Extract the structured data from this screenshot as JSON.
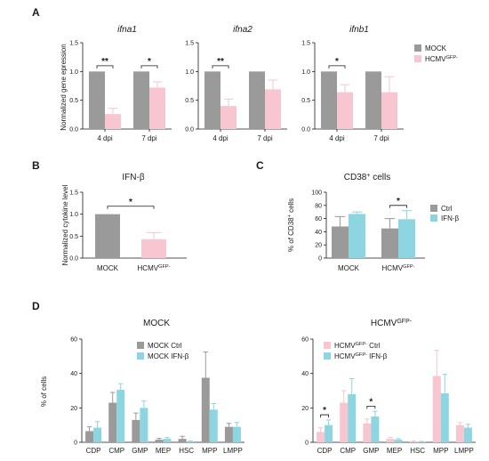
{
  "colors": {
    "mock": "#9a9a9a",
    "hcmv": "#f7c6d0",
    "ctrl": "#9a9a9a",
    "ifnb": "#8dd5e0",
    "axis": "#1a1a1a"
  },
  "panel_letters": [
    "A",
    "B",
    "C",
    "D"
  ],
  "chart_data": [
    {
      "panel": "A",
      "type": "bar",
      "title": "ifna1",
      "ylabel": "Normalized gene epression",
      "ylim": [
        0,
        1.5
      ],
      "yticks": [
        "0.0",
        "0.5",
        "1.0",
        "1.5"
      ],
      "categories": [
        "4 dpi",
        "7 dpi"
      ],
      "series": [
        {
          "name": "MOCK",
          "values": [
            1.0,
            1.0
          ],
          "errors": [
            0,
            0
          ]
        },
        {
          "name": "HCMV",
          "values": [
            0.26,
            0.72
          ],
          "errors": [
            0.1,
            0.1
          ]
        }
      ],
      "significance": [
        {
          "category": "4 dpi",
          "label": "**"
        },
        {
          "category": "7 dpi",
          "label": "*"
        }
      ]
    },
    {
      "panel": "A",
      "type": "bar",
      "title": "ifna2",
      "ylim": [
        0,
        1.5
      ],
      "yticks": [
        "0.0",
        "0.5",
        "1.0",
        "1.5"
      ],
      "categories": [
        "4 dpi",
        "7 dpi"
      ],
      "series": [
        {
          "name": "MOCK",
          "values": [
            1.0,
            1.0
          ],
          "errors": [
            0,
            0
          ]
        },
        {
          "name": "HCMV",
          "values": [
            0.4,
            0.69
          ],
          "errors": [
            0.12,
            0.16
          ]
        }
      ],
      "significance": [
        {
          "category": "4 dpi",
          "label": "**"
        }
      ]
    },
    {
      "panel": "A",
      "type": "bar",
      "title": "ifnb1",
      "ylim": [
        0,
        1.5
      ],
      "yticks": [
        "0.0",
        "0.5",
        "1.0",
        "1.5"
      ],
      "categories": [
        "4 dpi",
        "7 dpi"
      ],
      "series": [
        {
          "name": "MOCK",
          "values": [
            1.0,
            1.0
          ],
          "errors": [
            0,
            0
          ]
        },
        {
          "name": "HCMV",
          "values": [
            0.64,
            0.64
          ],
          "errors": [
            0.13,
            0.27
          ]
        }
      ],
      "significance": [
        {
          "category": "4 dpi",
          "label": "*"
        }
      ],
      "legend": {
        "placement": "right",
        "items": [
          {
            "label": "MOCK"
          },
          {
            "label": "HCMV",
            "sup": "GFP-"
          }
        ]
      }
    },
    {
      "panel": "B",
      "type": "bar",
      "title": "IFN-β",
      "ylabel": "Normalized cytokine level",
      "ylim": [
        0,
        1.5
      ],
      "yticks": [
        "0.0",
        "0.5",
        "1.0",
        "1.5"
      ],
      "categories": [
        "MOCK",
        "HCMV"
      ],
      "category_sup": [
        "",
        "GFP-"
      ],
      "values": [
        1.0,
        0.43
      ],
      "errors": [
        0,
        0.15
      ],
      "significance": [
        {
          "between": [
            "MOCK",
            "HCMV"
          ],
          "label": "*"
        }
      ]
    },
    {
      "panel": "C",
      "type": "bar",
      "title": "CD38",
      "title_sup": "+",
      "title_suffix": " cells",
      "ylabel": "% of CD38",
      "ylabel_sup": "+",
      "ylabel_suffix": " cells",
      "ylim": [
        0,
        100
      ],
      "yticks": [
        "0",
        "20",
        "40",
        "60",
        "80",
        "100"
      ],
      "categories": [
        "MOCK",
        "HCMV"
      ],
      "category_sup": [
        "",
        "GFP-"
      ],
      "series": [
        {
          "name": "Ctrl",
          "values": [
            48,
            45
          ],
          "errors": [
            15,
            15
          ]
        },
        {
          "name": "IFN-β",
          "values": [
            67,
            59
          ],
          "errors": [
            3,
            13
          ]
        }
      ],
      "significance": [
        {
          "category": "HCMV",
          "label": "*"
        }
      ],
      "legend": {
        "placement": "right",
        "items": [
          {
            "label": "Ctrl"
          },
          {
            "label": "IFN-β"
          }
        ]
      }
    },
    {
      "panel": "D",
      "type": "bar",
      "title": "MOCK",
      "ylabel": "% of cells",
      "ylim": [
        0,
        60
      ],
      "yticks": [
        "0",
        "20",
        "40",
        "60"
      ],
      "categories": [
        "CDP",
        "CMP",
        "GMP",
        "MEP",
        "HSC",
        "MPP",
        "LMPP"
      ],
      "series": [
        {
          "name": "MOCK Ctrl",
          "values": [
            6.5,
            23,
            13,
            1.5,
            2,
            37.5,
            9
          ],
          "errors": [
            2.5,
            6,
            4,
            0.8,
            1.5,
            15,
            2
          ]
        },
        {
          "name": "MOCK IFN-β",
          "values": [
            8.5,
            30.5,
            20,
            2,
            0.5,
            19,
            9
          ],
          "errors": [
            3.5,
            3.5,
            4,
            0.8,
            0.3,
            3.5,
            2.5
          ]
        }
      ],
      "legend": {
        "placement": "top-right",
        "items": [
          {
            "label": "MOCK Ctrl"
          },
          {
            "label": "MOCK IFN-β"
          }
        ]
      }
    },
    {
      "panel": "D",
      "type": "bar",
      "title": "HCMV",
      "title_sup": "GFP-",
      "ylim": [
        0,
        60
      ],
      "yticks": [
        "0",
        "20",
        "40",
        "60"
      ],
      "categories": [
        "CDP",
        "CMP",
        "GMP",
        "MEP",
        "HSC",
        "MPP",
        "LMPP"
      ],
      "series": [
        {
          "name": "HCMV Ctrl",
          "values": [
            6,
            23,
            11,
            2,
            0.5,
            38.5,
            10
          ],
          "errors": [
            2.5,
            7,
            2.5,
            0.8,
            0.3,
            15,
            1.5
          ]
        },
        {
          "name": "HCMV IFN-β",
          "values": [
            10,
            28,
            15,
            1.5,
            0.3,
            28.5,
            8.5
          ],
          "errors": [
            3,
            9,
            3,
            0.6,
            0.2,
            11,
            2
          ]
        }
      ],
      "significance": [
        {
          "category": "CDP",
          "label": "*"
        },
        {
          "category": "GMP",
          "label": "*"
        }
      ],
      "legend": {
        "placement": "top-right",
        "items": [
          {
            "prefix": "HCMV",
            "sup": "GFP-",
            "suffix": " Ctrl"
          },
          {
            "prefix": "HCMV",
            "sup": "GFP-",
            "suffix": " IFN-β"
          }
        ]
      }
    }
  ]
}
